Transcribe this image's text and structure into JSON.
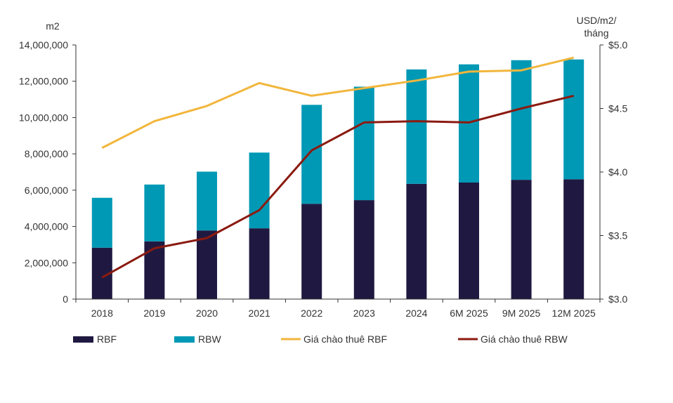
{
  "chart_data": {
    "type": "bar",
    "title": "",
    "categories": [
      "2018",
      "2019",
      "2020",
      "2021",
      "2022",
      "2023",
      "2024",
      "6M 2025",
      "9M 2025",
      "12M 2025"
    ],
    "series": [
      {
        "name": "RBF",
        "type": "bar-stacked",
        "axis": "left",
        "color": "#1f1941",
        "values": [
          2830000,
          3180000,
          3780000,
          3900000,
          5250000,
          5450000,
          6350000,
          6420000,
          6570000,
          6600000
        ]
      },
      {
        "name": "RBW",
        "type": "bar-stacked",
        "axis": "left",
        "color": "#0099b5",
        "values": [
          2750000,
          3130000,
          3240000,
          4170000,
          5450000,
          6250000,
          6300000,
          6510000,
          6590000,
          6600000
        ]
      },
      {
        "name": "Giá chào thuê RBF",
        "type": "line",
        "axis": "right",
        "color": "#f2b63c",
        "values": [
          4.19,
          4.4,
          4.52,
          4.7,
          4.6,
          4.66,
          4.72,
          4.79,
          4.8,
          4.9
        ]
      },
      {
        "name": "Giá chào thuê RBW",
        "type": "line",
        "axis": "right",
        "color": "#8b1a10",
        "values": [
          3.17,
          3.4,
          3.48,
          3.7,
          4.17,
          4.39,
          4.4,
          4.39,
          4.5,
          4.6
        ]
      }
    ],
    "y_left": {
      "label": "m2",
      "min": 0,
      "max": 14000000,
      "ticks": [
        "0",
        "2,000,000",
        "4,000,000",
        "6,000,000",
        "8,000,000",
        "10,000,000",
        "12,000,000",
        "14,000,000"
      ],
      "tick_values": [
        0,
        2000000,
        4000000,
        6000000,
        8000000,
        10000000,
        12000000,
        14000000
      ]
    },
    "y_right": {
      "label_line1": "USD/m2/",
      "label_line2": "tháng",
      "min": 3.0,
      "max": 5.0,
      "ticks": [
        "$3.0",
        "$3.5",
        "$4.0",
        "$4.5",
        "$5.0"
      ],
      "tick_values": [
        3.0,
        3.5,
        4.0,
        4.5,
        5.0
      ]
    },
    "grid": false,
    "legend_position": "bottom"
  }
}
